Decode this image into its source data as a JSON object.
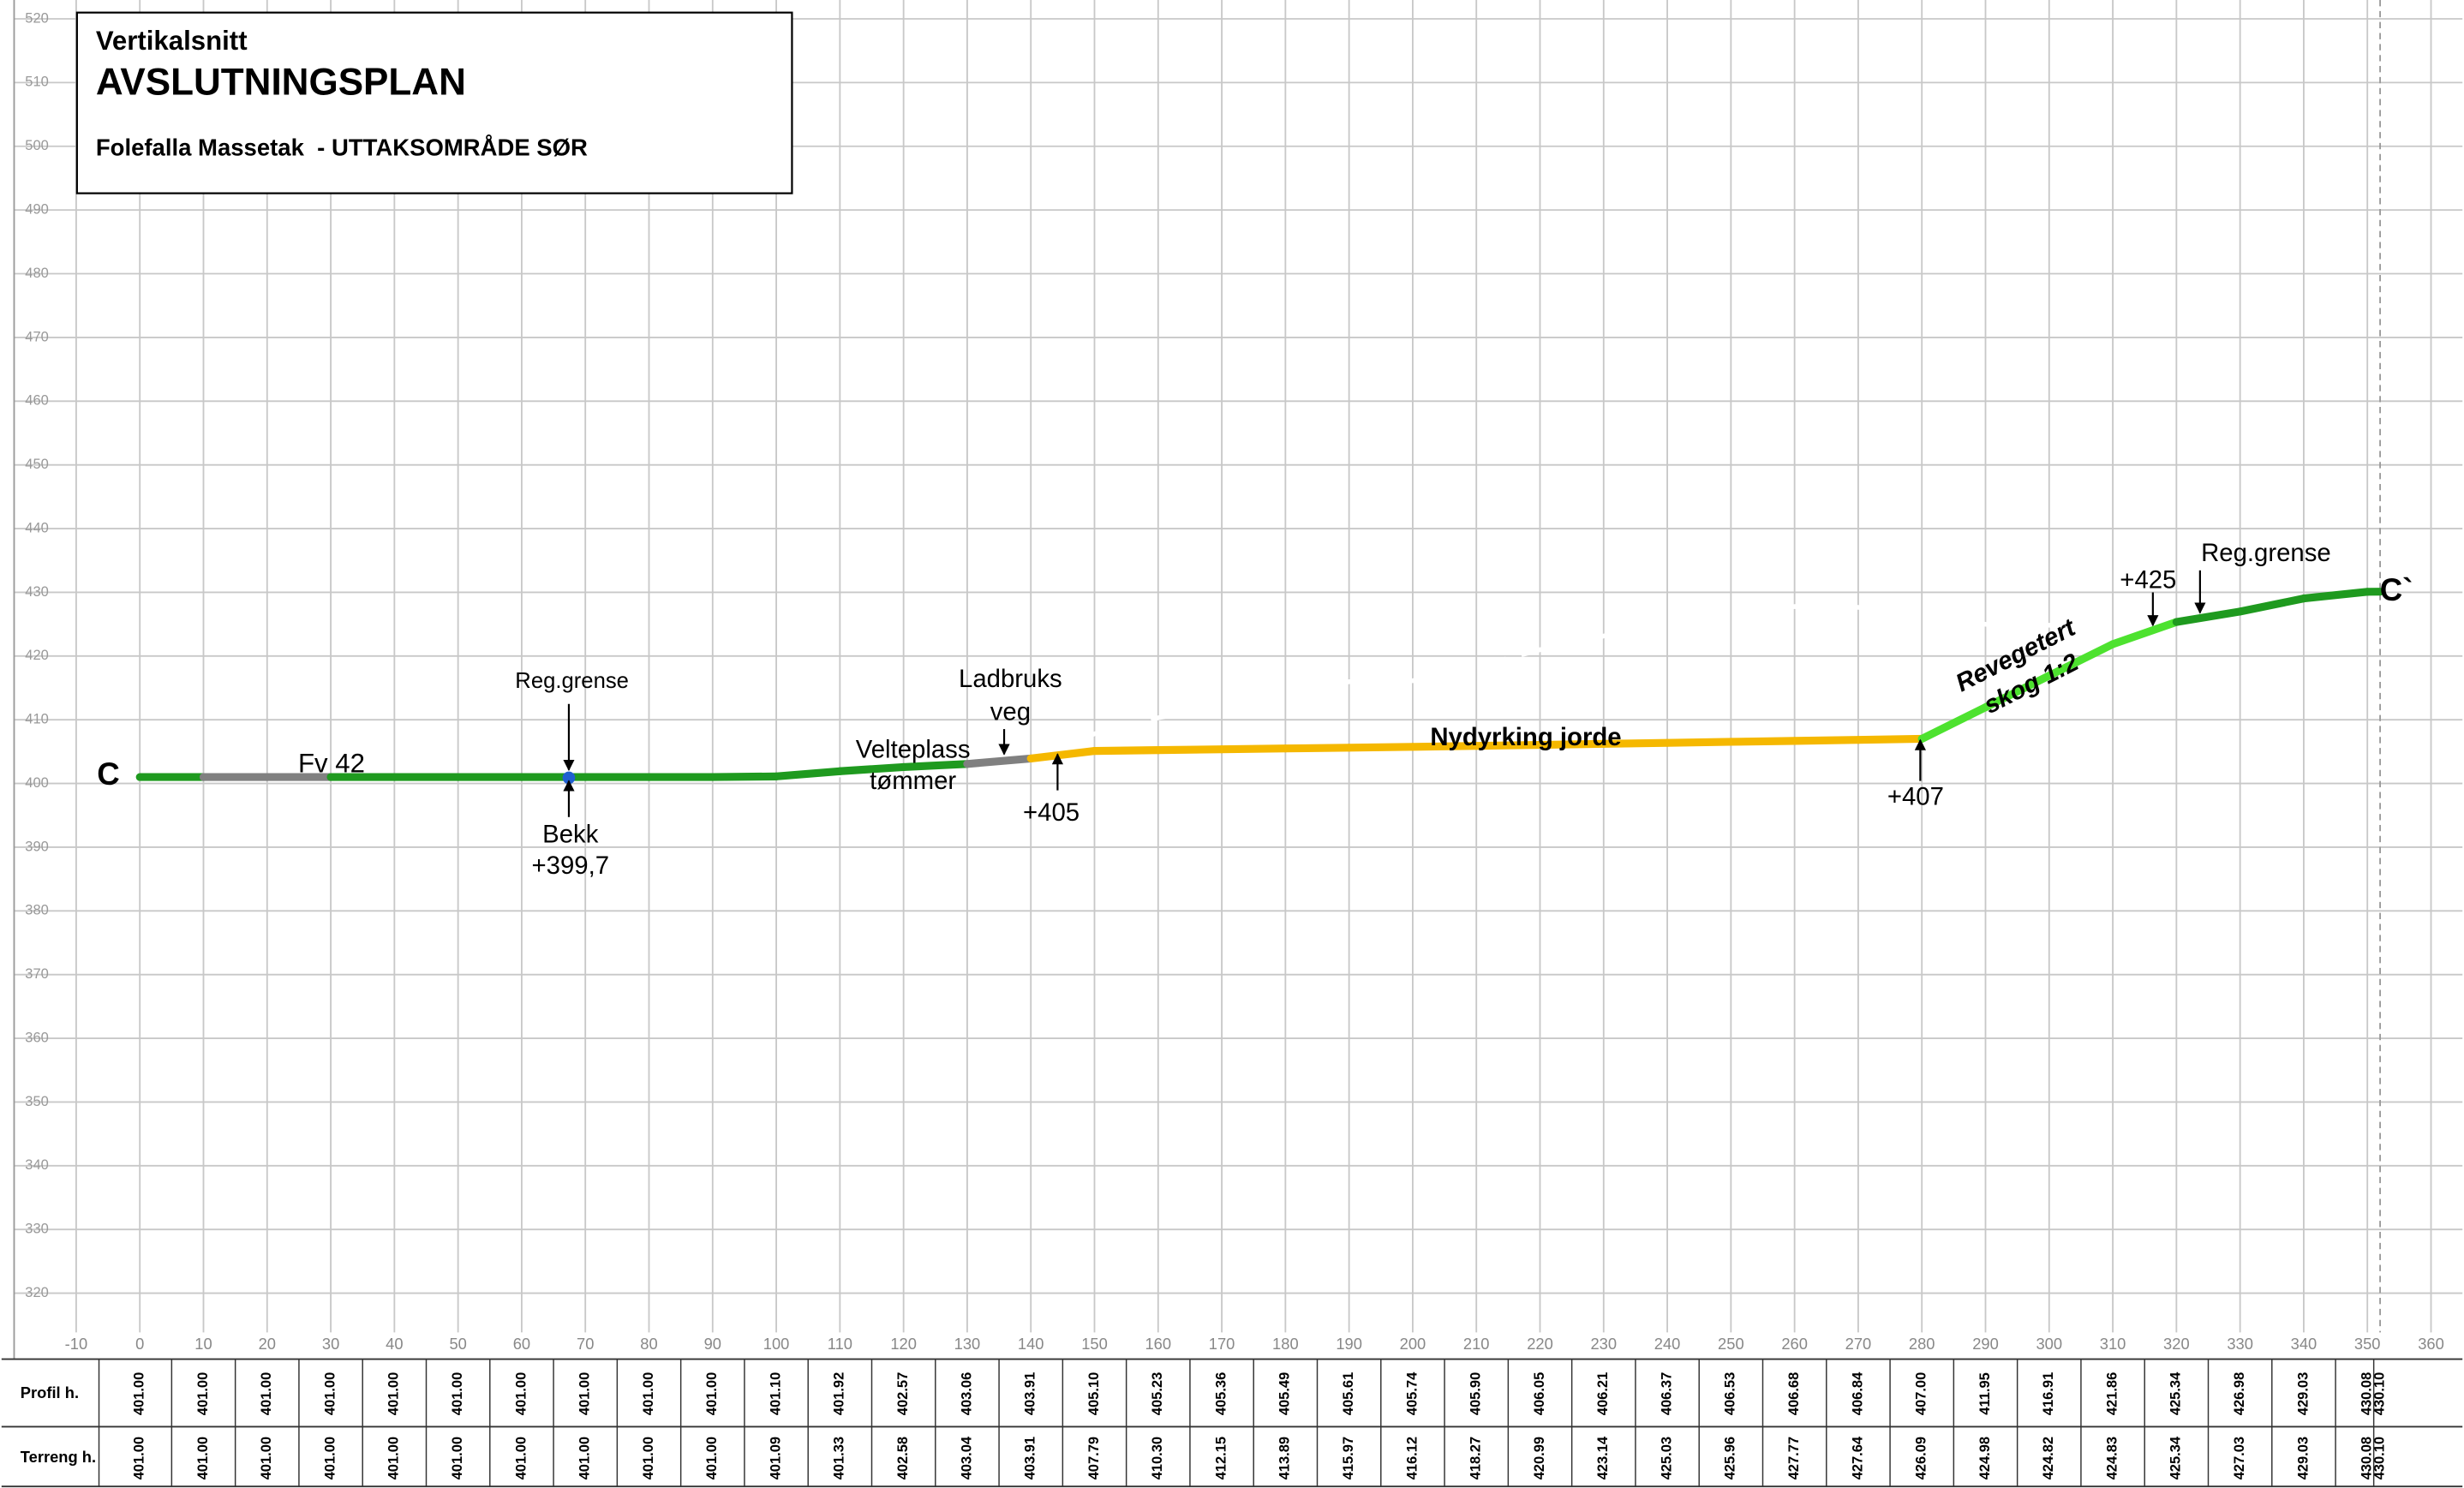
{
  "chart_data": {
    "type": "profile",
    "title": "Vertikalsnitt",
    "heading": "AVSLUTNINGSPLAN",
    "subtitle": "Folefalla Massetak  - UTTAKSOMRÅDE SØR",
    "xlim": [
      -10,
      365
    ],
    "ylim": [
      315,
      520
    ],
    "xticks": [
      -10,
      0,
      10,
      20,
      30,
      40,
      50,
      60,
      70,
      80,
      90,
      100,
      110,
      120,
      130,
      140,
      150,
      160,
      170,
      180,
      190,
      200,
      210,
      220,
      230,
      240,
      250,
      260,
      270,
      280,
      290,
      300,
      310,
      320,
      330,
      340,
      350,
      360
    ],
    "yticks": [
      320,
      330,
      340,
      350,
      360,
      370,
      380,
      390,
      400,
      410,
      420,
      430,
      440,
      450,
      460,
      470,
      480,
      490,
      500,
      510,
      520
    ],
    "grid": true,
    "x": [
      0,
      10,
      20,
      30,
      40,
      50,
      60,
      70,
      80,
      90,
      100,
      110,
      120,
      130,
      140,
      150,
      160,
      170,
      180,
      190,
      200,
      210,
      220,
      230,
      240,
      250,
      260,
      270,
      280,
      290,
      300,
      310,
      320,
      330,
      340,
      350,
      352
    ],
    "series": [
      {
        "name": "Profil h.",
        "values": [
          401.0,
          401.0,
          401.0,
          401.0,
          401.0,
          401.0,
          401.0,
          401.0,
          401.0,
          401.0,
          401.1,
          401.92,
          402.57,
          403.06,
          403.91,
          405.1,
          405.23,
          405.36,
          405.49,
          405.61,
          405.74,
          405.9,
          406.05,
          406.21,
          406.37,
          406.53,
          406.68,
          406.84,
          407.0,
          411.95,
          416.91,
          421.86,
          425.34,
          426.98,
          429.03,
          430.08,
          430.1
        ],
        "value_labels": [
          "401.00",
          "401.00",
          "401.00",
          "401.00",
          "401.00",
          "401.00",
          "401.00",
          "401.00",
          "401.00",
          "401.00",
          "401.10",
          "401.92",
          "402.57",
          "403.06",
          "403.91",
          "405.10",
          "405.23",
          "405.36",
          "405.49",
          "405.61",
          "405.74",
          "405.90",
          "406.05",
          "406.21",
          "406.37",
          "406.53",
          "406.68",
          "406.84",
          "407.00",
          "411.95",
          "416.91",
          "421.86",
          "425.34",
          "426.98",
          "429.03",
          "430.08",
          "430.10"
        ],
        "colors": [
          "#1f9a1f",
          "#808080",
          "#808080",
          "#1f9a1f",
          "#1f9a1f",
          "#1f9a1f",
          "#1f9a1f",
          "#1f9a1f",
          "#1f9a1f",
          "#1f9a1f",
          "#1f9a1f",
          "#1f9a1f",
          "#1f9a1f",
          "#808080",
          "#f5b800",
          "#f5b800",
          "#f5b800",
          "#f5b800",
          "#f5b800",
          "#f5b800",
          "#f5b800",
          "#f5b800",
          "#f5b800",
          "#f5b800",
          "#f5b800",
          "#f5b800",
          "#f5b800",
          "#f5b800",
          "#4de22f",
          "#4de22f",
          "#4de22f",
          "#4de22f",
          "#1f9a1f",
          "#1f9a1f",
          "#1f9a1f",
          "#1f9a1f"
        ]
      },
      {
        "name": "Terreng h.",
        "color": "#ffffff",
        "values": [
          401.0,
          401.0,
          401.0,
          401.0,
          401.0,
          401.0,
          401.0,
          401.0,
          401.0,
          401.0,
          401.09,
          401.33,
          402.58,
          403.04,
          403.91,
          407.79,
          410.3,
          412.15,
          413.89,
          415.97,
          416.12,
          418.27,
          420.99,
          423.14,
          425.03,
          425.96,
          427.77,
          427.64,
          426.09,
          424.98,
          424.82,
          424.83,
          425.34,
          427.03,
          429.03,
          430.08,
          430.1
        ],
        "value_labels": [
          "401.00",
          "401.00",
          "401.00",
          "401.00",
          "401.00",
          "401.00",
          "401.00",
          "401.00",
          "401.00",
          "401.00",
          "401.09",
          "401.33",
          "402.58",
          "403.04",
          "403.91",
          "407.79",
          "410.30",
          "412.15",
          "413.89",
          "415.97",
          "416.12",
          "418.27",
          "420.99",
          "423.14",
          "425.03",
          "425.96",
          "427.77",
          "427.64",
          "426.09",
          "424.98",
          "424.82",
          "424.83",
          "425.34",
          "427.03",
          "429.03",
          "430.08",
          "430.10"
        ]
      }
    ],
    "annotations": [
      "C",
      "Fv 42",
      "Reg.grense",
      "Bekk",
      "+399,7",
      "Velteplass",
      "tømmer",
      "Ladbruks",
      "veg",
      "+405",
      "Nydyrking jorde",
      "+407",
      "Revegetert",
      "skog 1:2",
      "+425",
      "Reg.grense",
      "C`"
    ]
  }
}
